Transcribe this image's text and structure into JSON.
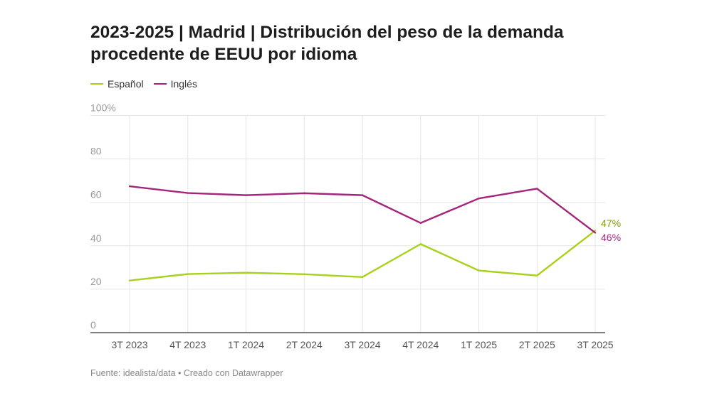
{
  "title": "2023-2025 | Madrid | Distribución del peso de la demanda procedente de EEUU por idioma",
  "source": "Fuente: idealista/data • Creado con Datawrapper",
  "chart_data": {
    "type": "line",
    "title": "2023-2025 | Madrid | Distribución del peso de la demanda procedente de EEUU por idioma",
    "categories": [
      "3T 2023",
      "4T 2023",
      "1T 2024",
      "2T 2024",
      "3T 2024",
      "4T 2024",
      "1T 2025",
      "2T 2025",
      "3T 2025"
    ],
    "series": [
      {
        "name": "Español",
        "color": "#a8d11c",
        "values": [
          24.0,
          27.0,
          27.6,
          26.9,
          25.6,
          40.8,
          28.6,
          26.3,
          47
        ]
      },
      {
        "name": "Inglés",
        "color": "#a5247c",
        "values": [
          67.4,
          64.3,
          63.3,
          64.2,
          63.3,
          50.5,
          61.8,
          66.3,
          46
        ]
      }
    ],
    "end_labels": [
      {
        "series": "Español",
        "text": "47%",
        "color": "#7f9a12"
      },
      {
        "series": "Inglés",
        "text": "46%",
        "color": "#a5247c"
      }
    ],
    "yticks": [
      "0",
      "20",
      "40",
      "60",
      "80",
      "100%"
    ],
    "ylim": [
      0,
      100
    ],
    "grid": true,
    "legend": "top-left",
    "xlabel": "",
    "ylabel": ""
  }
}
